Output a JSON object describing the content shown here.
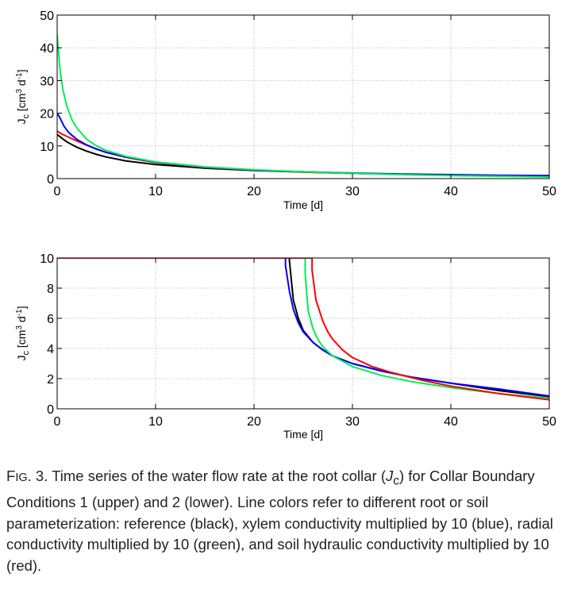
{
  "chart_data": [
    {
      "type": "line",
      "panel": "upper",
      "xlabel": "Time [d]",
      "ylabel": "J_c [cm^3 d^-1]",
      "xlim": [
        0,
        50
      ],
      "ylim": [
        0,
        50
      ],
      "xticks": [
        0,
        10,
        20,
        30,
        40,
        50
      ],
      "yticks": [
        0,
        10,
        20,
        30,
        40,
        50
      ],
      "grid": true,
      "series": [
        {
          "color": "#000000",
          "x": [
            0,
            0.5,
            1,
            2,
            3,
            4,
            5,
            7,
            10,
            15,
            20,
            25,
            30,
            35,
            40,
            45,
            50
          ],
          "y": [
            13.5,
            12.3,
            11.2,
            9.6,
            8.4,
            7.4,
            6.6,
            5.4,
            4.3,
            3.2,
            2.5,
            2.0,
            1.6,
            1.3,
            1.1,
            0.9,
            0.75
          ]
        },
        {
          "color": "#ff0000",
          "x": [
            0,
            0.5,
            1,
            2,
            3,
            4,
            5,
            7,
            10,
            15,
            20,
            25,
            30,
            35,
            40,
            45,
            50
          ],
          "y": [
            14.5,
            13.6,
            12.9,
            11.5,
            10.2,
            9.1,
            8.0,
            6.5,
            4.9,
            3.4,
            2.6,
            2.0,
            1.6,
            1.3,
            1.05,
            0.85,
            0.7
          ]
        },
        {
          "color": "#0000ff",
          "x": [
            0,
            0.3,
            0.7,
            1.2,
            2,
            3,
            4,
            5,
            7,
            10,
            15,
            20,
            25,
            30,
            35,
            40,
            45,
            50
          ],
          "y": [
            20,
            18.5,
            16.0,
            14.0,
            12.0,
            10.3,
            9.0,
            8.0,
            6.6,
            5.0,
            3.5,
            2.6,
            2.1,
            1.7,
            1.4,
            1.2,
            1.0,
            0.9
          ]
        },
        {
          "color": "#00ee55",
          "x": [
            0,
            0.1,
            0.3,
            0.6,
            1,
            1.5,
            2,
            3,
            4,
            5,
            7,
            10,
            15,
            20,
            25,
            30,
            35,
            40,
            45,
            50
          ],
          "y": [
            44,
            40,
            33,
            27,
            22,
            18,
            15.5,
            12.0,
            10.0,
            8.6,
            6.8,
            5.1,
            3.6,
            2.7,
            2.1,
            1.6,
            1.2,
            0.9,
            0.7,
            0.5
          ]
        }
      ]
    },
    {
      "type": "line",
      "panel": "lower",
      "xlabel": "Time [d]",
      "ylabel": "J_c [cm^3 d^-1]",
      "xlim": [
        0,
        50
      ],
      "ylim": [
        0,
        10
      ],
      "xticks": [
        0,
        10,
        20,
        30,
        40,
        50
      ],
      "yticks": [
        0,
        2,
        4,
        6,
        8,
        10
      ],
      "grid": true,
      "series": [
        {
          "color": "#000000",
          "x": [
            0,
            23.6,
            23.6,
            24.0,
            24.5,
            25,
            26,
            27,
            28,
            30,
            33,
            36,
            40,
            45,
            50
          ],
          "y": [
            10,
            10,
            9.8,
            7.2,
            6.0,
            5.2,
            4.4,
            3.9,
            3.5,
            3.0,
            2.5,
            2.1,
            1.7,
            1.2,
            0.8
          ]
        },
        {
          "color": "#0000ff",
          "x": [
            0,
            23.2,
            23.2,
            23.6,
            24.0,
            24.5,
            25,
            26,
            27,
            28,
            30,
            33,
            36,
            40,
            45,
            50
          ],
          "y": [
            10,
            10,
            9.5,
            7.8,
            6.6,
            5.7,
            5.1,
            4.4,
            3.9,
            3.5,
            3.0,
            2.5,
            2.1,
            1.7,
            1.3,
            0.85
          ]
        },
        {
          "color": "#00ee55",
          "x": [
            0,
            25.2,
            25.2,
            25.5,
            26,
            26.5,
            27,
            28,
            30,
            33,
            36,
            40,
            45,
            50
          ],
          "y": [
            10,
            10,
            9.0,
            6.5,
            5.3,
            4.6,
            4.1,
            3.5,
            2.8,
            2.2,
            1.8,
            1.4,
            1.0,
            0.7
          ]
        },
        {
          "color": "#ff0000",
          "x": [
            0,
            25.9,
            25.9,
            26.3,
            27,
            27.5,
            28,
            29,
            30,
            32,
            34,
            37,
            40,
            45,
            50
          ],
          "y": [
            10,
            10,
            9.2,
            7.2,
            5.8,
            5.1,
            4.6,
            3.9,
            3.4,
            2.8,
            2.4,
            1.9,
            1.5,
            1.0,
            0.6
          ]
        }
      ]
    }
  ],
  "caption": {
    "label_prefix": "F",
    "label_sc": "IG",
    "label_num": ". 3.",
    "text_before_symbol": " Time series of the water flow rate at the root collar (",
    "symbol": "J",
    "symbol_sub": "c",
    "text_after_symbol": ") for Collar Boundary Conditions 1 (upper) and 2 (lower). Line colors refer to different root or soil parameterization: reference (black), xylem conductivity multiplied by 10 (blue), radial conductivity multiplied by 10 (green), and soil hydraulic conductivity multiplied by 10 (red)."
  }
}
